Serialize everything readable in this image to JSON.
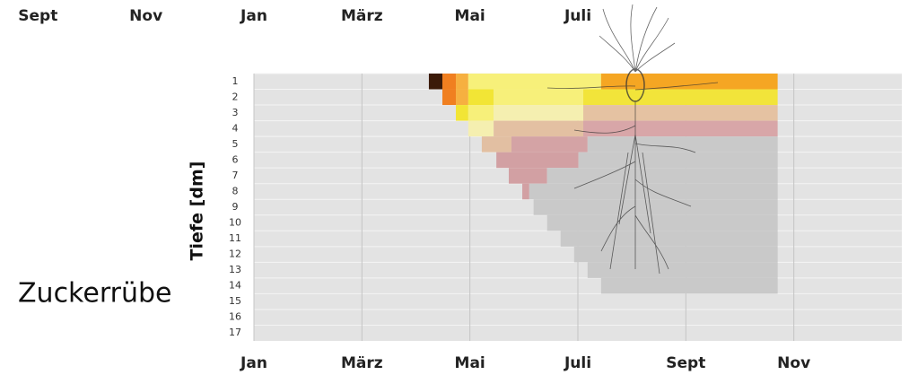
{
  "chart_data": {
    "type": "depth-timeline",
    "title": "Zuckerrübe",
    "y_label": "Tiefe [dm]",
    "xlim": [
      0,
      12
    ],
    "xticks": [
      {
        "value": 0,
        "label": "Jan"
      },
      {
        "value": 2,
        "label": "März"
      },
      {
        "value": 4,
        "label": "Mai"
      },
      {
        "value": 6,
        "label": "Juli"
      },
      {
        "value": 8,
        "label": "Sept"
      },
      {
        "value": 10,
        "label": "Nov"
      }
    ],
    "top_xticks": [
      {
        "value": -4,
        "label": "Sept"
      },
      {
        "value": -2,
        "label": "Nov"
      },
      {
        "value": 0,
        "label": "Jan"
      },
      {
        "value": 2,
        "label": "März"
      },
      {
        "value": 4,
        "label": "Mai"
      },
      {
        "value": 6,
        "label": "Juli"
      }
    ],
    "yticks": [
      1,
      2,
      3,
      4,
      5,
      6,
      7,
      8,
      9,
      10,
      11,
      12,
      13,
      14,
      15,
      16,
      17
    ],
    "grid": true,
    "rows": [
      [
        {
          "from": 3.24,
          "to": 3.49,
          "color": "#3b1a08"
        },
        {
          "from": 3.49,
          "to": 3.74,
          "color": "#f07f20"
        },
        {
          "from": 3.74,
          "to": 3.97,
          "color": "#f6b040"
        },
        {
          "from": 3.97,
          "to": 6.43,
          "color": "#f7f07a"
        },
        {
          "from": 6.43,
          "to": 9.7,
          "color": "#f5a623"
        }
      ],
      [
        {
          "from": 3.49,
          "to": 3.74,
          "color": "#f07f20"
        },
        {
          "from": 3.74,
          "to": 3.97,
          "color": "#f6b040"
        },
        {
          "from": 3.97,
          "to": 4.44,
          "color": "#f2e535"
        },
        {
          "from": 4.44,
          "to": 6.1,
          "color": "#f7f07a"
        },
        {
          "from": 6.1,
          "to": 9.7,
          "color": "#f2e43a"
        }
      ],
      [
        {
          "from": 3.74,
          "to": 3.97,
          "color": "#f2e535"
        },
        {
          "from": 3.97,
          "to": 4.44,
          "color": "#f7f07a"
        },
        {
          "from": 4.44,
          "to": 6.1,
          "color": "#f5efb0"
        },
        {
          "from": 6.1,
          "to": 9.7,
          "color": "#e5c2a2"
        }
      ],
      [
        {
          "from": 3.97,
          "to": 4.44,
          "color": "#f5efb0"
        },
        {
          "from": 4.44,
          "to": 6.1,
          "color": "#e3c0a2"
        },
        {
          "from": 6.1,
          "to": 9.7,
          "color": "#d8a6a8"
        }
      ],
      [
        {
          "from": 4.22,
          "to": 4.77,
          "color": "#e2bfa2"
        },
        {
          "from": 4.77,
          "to": 6.18,
          "color": "#d4a3a5"
        },
        {
          "from": 6.18,
          "to": 9.7,
          "color": "#c9c9c9"
        }
      ],
      [
        {
          "from": 4.49,
          "to": 6.01,
          "color": "#d2a0a3"
        },
        {
          "from": 6.01,
          "to": 9.7,
          "color": "#c9c9c9"
        }
      ],
      [
        {
          "from": 4.72,
          "to": 5.43,
          "color": "#d2a0a3"
        },
        {
          "from": 5.43,
          "to": 9.7,
          "color": "#c9c9c9"
        }
      ],
      [
        {
          "from": 4.97,
          "to": 5.1,
          "color": "#d2a0a3"
        },
        {
          "from": 5.1,
          "to": 9.7,
          "color": "#c9c9c9"
        }
      ],
      [
        {
          "from": 5.18,
          "to": 9.7,
          "color": "#c9c9c9"
        }
      ],
      [
        {
          "from": 5.43,
          "to": 9.7,
          "color": "#c9c9c9"
        }
      ],
      [
        {
          "from": 5.68,
          "to": 9.7,
          "color": "#c9c9c9"
        }
      ],
      [
        {
          "from": 5.93,
          "to": 9.7,
          "color": "#c9c9c9"
        }
      ],
      [
        {
          "from": 6.18,
          "to": 9.7,
          "color": "#c9c9c9"
        }
      ],
      [
        {
          "from": 6.43,
          "to": 9.7,
          "color": "#c9c9c9"
        }
      ],
      [],
      [],
      []
    ]
  }
}
